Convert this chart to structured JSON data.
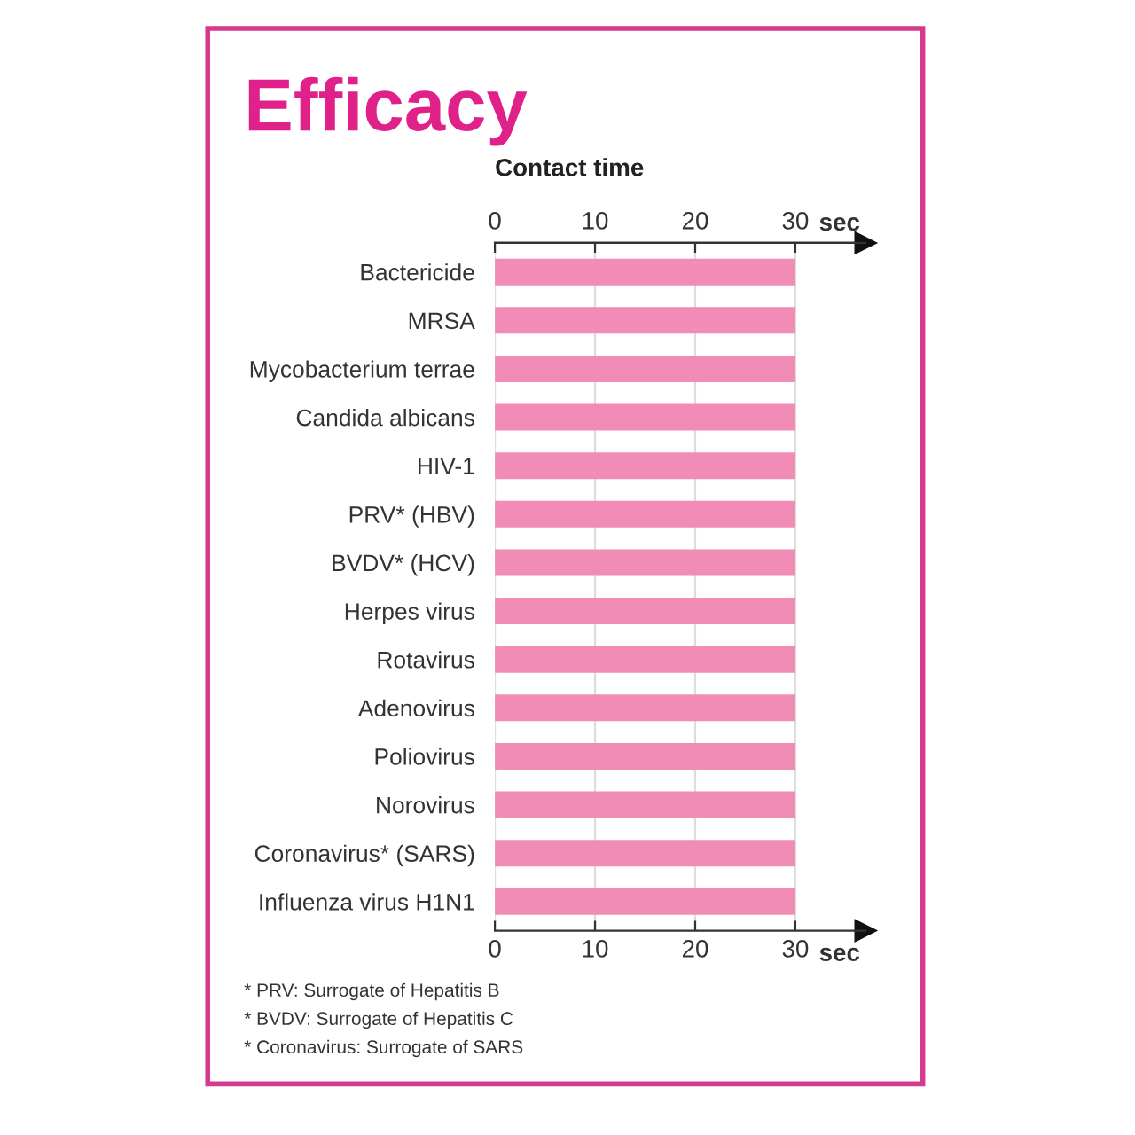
{
  "chart_data": {
    "type": "bar",
    "orientation": "horizontal",
    "title": "Efficacy",
    "subtitle": "Contact time",
    "xlabel": "sec",
    "x2label": "sec",
    "categories": [
      "Bactericide",
      "MRSA",
      "Mycobacterium terrae",
      "Candida albicans",
      "HIV-1",
      "PRV* (HBV)",
      "BVDV* (HCV)",
      "Herpes virus",
      "Rotavirus",
      "Adenovirus",
      "Poliovirus",
      "Norovirus",
      "Coronavirus* (SARS)",
      "Influenza virus H1N1"
    ],
    "values": [
      30,
      30,
      30,
      30,
      30,
      30,
      30,
      30,
      30,
      30,
      30,
      30,
      30,
      30
    ],
    "color": "#f08cb6",
    "xlim": [
      0,
      37
    ],
    "xticks": [
      0,
      10,
      20,
      30
    ],
    "x2lim": [
      0,
      37
    ],
    "x2ticks": [
      0,
      10,
      20,
      30
    ],
    "grid": "x",
    "annotations": [
      "* PRV: Surrogate of Hepatitis B",
      "* BVDV: Surrogate of Hepatitis C",
      "* Coronavirus: Surrogate of SARS"
    ]
  }
}
